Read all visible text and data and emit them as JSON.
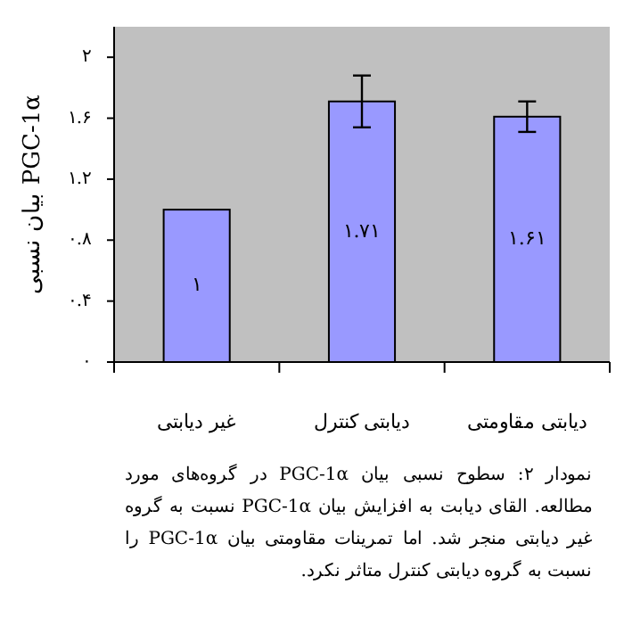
{
  "chart_data": {
    "type": "bar",
    "ylabel": "بیان نسبی PGC-1α",
    "categories": [
      "غیر دیابتی",
      "دیابتی کنترل",
      "دیابتی مقاومتی"
    ],
    "values": [
      1,
      1.71,
      1.61
    ],
    "errors": [
      null,
      0.17,
      0.1
    ],
    "value_labels": [
      "۱",
      "۱.۷۱",
      "۱.۶۱"
    ],
    "color": "#9999ff",
    "ylim": [
      0,
      2.2
    ],
    "yticks": [
      {
        "value": 0,
        "label": "۰"
      },
      {
        "value": 0.4,
        "label": "۰.۴"
      },
      {
        "value": 0.8,
        "label": "۰.۸"
      },
      {
        "value": 1.2,
        "label": "۱.۲"
      },
      {
        "value": 1.6,
        "label": "۱.۶"
      },
      {
        "value": 2,
        "label": "۲"
      }
    ],
    "grid": false,
    "annotations": [
      "نمودار ۲: سطوح نسبی بیان PGC-1α در گروه‌های مورد مطالعه. القای دیابت به افزایش بیان PGC-1α نسبت به گروه غیر دیابتی منجر شد. اما تمرینات مقاومتی بیان PGC-1α را نسبت به گروه دیابتی کنترل متاثر نکرد."
    ]
  }
}
